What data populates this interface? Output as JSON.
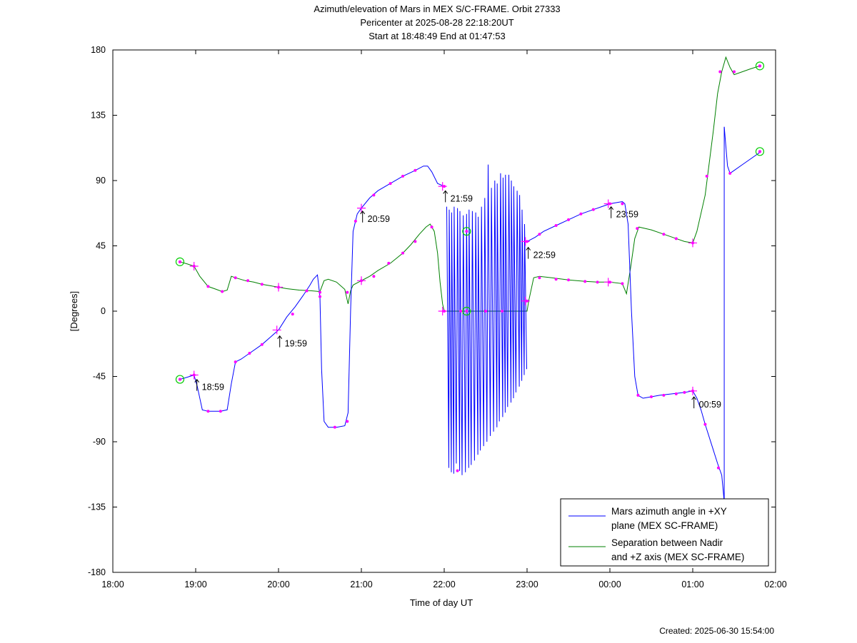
{
  "chart_data": {
    "type": "line",
    "title_lines": [
      "Azimuth/elevation of Mars in MEX S/C-FRAME.  Orbit 27333",
      "Pericenter at 2025-08-28 22:18:20UT",
      "Start at 18:48:49 End at 01:47:53"
    ],
    "xlabel": "Time of day UT",
    "ylabel": "[Degrees]",
    "xlim": [
      18.0,
      26.0
    ],
    "ylim": [
      -180,
      180
    ],
    "x_ticks": [
      {
        "v": 18,
        "label": "18:00"
      },
      {
        "v": 19,
        "label": "19:00"
      },
      {
        "v": 20,
        "label": "20:00"
      },
      {
        "v": 21,
        "label": "21:00"
      },
      {
        "v": 22,
        "label": "22:00"
      },
      {
        "v": 23,
        "label": "23:00"
      },
      {
        "v": 24,
        "label": "00:00"
      },
      {
        "v": 25,
        "label": "01:00"
      },
      {
        "v": 26,
        "label": "02:00"
      }
    ],
    "y_ticks": [
      {
        "v": 180,
        "label": "180"
      },
      {
        "v": 135,
        "label": "135"
      },
      {
        "v": 90,
        "label": "90"
      },
      {
        "v": 45,
        "label": "45"
      },
      {
        "v": 0,
        "label": "0"
      },
      {
        "v": -45,
        "label": "-45"
      },
      {
        "v": -90,
        "label": "-90"
      },
      {
        "v": -135,
        "label": "-135"
      },
      {
        "v": -180,
        "label": "-180"
      }
    ],
    "legend_position": "bottom-right",
    "series": [
      {
        "name": "Mars azimuth angle in +XY plane (MEX SC-FRAME)",
        "legend_lines": [
          "Mars azimuth angle in +XY",
          "plane (MEX SC-FRAME)"
        ],
        "color": "#0000ff",
        "points": [
          [
            18.81,
            -47
          ],
          [
            18.9,
            -45.5
          ],
          [
            18.98,
            -44
          ],
          [
            19.02,
            -52
          ],
          [
            19.08,
            -68
          ],
          [
            19.15,
            -69
          ],
          [
            19.3,
            -69
          ],
          [
            19.38,
            -68
          ],
          [
            19.43,
            -50
          ],
          [
            19.48,
            -35
          ],
          [
            19.55,
            -33
          ],
          [
            19.65,
            -29
          ],
          [
            19.8,
            -23
          ],
          [
            19.9,
            -18
          ],
          [
            20.0,
            -13
          ],
          [
            20.1,
            -4
          ],
          [
            20.2,
            3
          ],
          [
            20.3,
            11
          ],
          [
            20.38,
            18
          ],
          [
            20.42,
            22
          ],
          [
            20.47,
            25
          ],
          [
            20.5,
            10
          ],
          [
            20.52,
            -40
          ],
          [
            20.55,
            -76
          ],
          [
            20.6,
            -80
          ],
          [
            20.7,
            -80
          ],
          [
            20.8,
            -79
          ],
          [
            20.84,
            -70
          ],
          [
            20.87,
            0
          ],
          [
            20.9,
            55
          ],
          [
            20.95,
            67
          ],
          [
            21.0,
            71
          ],
          [
            21.1,
            78
          ],
          [
            21.2,
            83
          ],
          [
            21.35,
            88
          ],
          [
            21.5,
            93
          ],
          [
            21.65,
            97
          ],
          [
            21.75,
            100
          ],
          [
            21.8,
            100
          ],
          [
            21.85,
            96
          ],
          [
            21.92,
            88
          ],
          [
            22.0,
            86
          ]
        ],
        "extra_segments": [
          [
            [
              23.0,
              48
            ],
            [
              23.1,
              51
            ],
            [
              23.2,
              55
            ],
            [
              23.35,
              59
            ],
            [
              23.5,
              63
            ],
            [
              23.65,
              67
            ],
            [
              23.8,
              70
            ],
            [
              23.9,
              72
            ],
            [
              24.0,
              74
            ],
            [
              24.1,
              75
            ],
            [
              24.15,
              75.5
            ],
            [
              24.18,
              74
            ],
            [
              24.22,
              60
            ],
            [
              24.26,
              0
            ],
            [
              24.3,
              -45
            ],
            [
              24.34,
              -58
            ],
            [
              24.4,
              -60
            ],
            [
              24.5,
              -59
            ],
            [
              24.6,
              -58
            ],
            [
              24.75,
              -57
            ],
            [
              24.9,
              -56
            ],
            [
              25.0,
              -55
            ],
            [
              25.05,
              -60
            ],
            [
              25.1,
              -68
            ],
            [
              25.15,
              -78
            ],
            [
              25.25,
              -96
            ],
            [
              25.3,
              -105
            ],
            [
              25.35,
              -113
            ],
            [
              25.37,
              -125
            ],
            [
              25.38,
              -132
            ]
          ],
          [
            [
              25.38,
              127
            ],
            [
              25.42,
              100
            ],
            [
              25.45,
              95
            ],
            [
              25.5,
              97
            ],
            [
              25.6,
              101
            ],
            [
              25.7,
              105
            ],
            [
              25.8,
              109
            ],
            [
              25.81,
              110
            ]
          ]
        ]
      },
      {
        "name": "Separation between Nadir and +Z axis (MEX SC-FRAME)",
        "legend_lines": [
          "Separation between Nadir",
          "and +Z axis (MEX SC-FRAME)"
        ],
        "color": "#008000",
        "points": [
          [
            18.81,
            34
          ],
          [
            18.9,
            32.5
          ],
          [
            18.98,
            31
          ],
          [
            19.05,
            24
          ],
          [
            19.15,
            17
          ],
          [
            19.25,
            15
          ],
          [
            19.32,
            13.5
          ],
          [
            19.38,
            14.5
          ],
          [
            19.43,
            24
          ],
          [
            19.48,
            23
          ],
          [
            19.6,
            21
          ],
          [
            19.7,
            20
          ],
          [
            19.8,
            18.5
          ],
          [
            19.9,
            17.5
          ],
          [
            20.0,
            16.5
          ],
          [
            20.1,
            15.5
          ],
          [
            20.25,
            14.5
          ],
          [
            20.4,
            14
          ],
          [
            20.5,
            13.5
          ],
          [
            20.55,
            21
          ],
          [
            20.6,
            22
          ],
          [
            20.7,
            20
          ],
          [
            20.8,
            15
          ],
          [
            20.84,
            5
          ],
          [
            20.87,
            14
          ],
          [
            20.9,
            18
          ],
          [
            21.0,
            21
          ],
          [
            21.1,
            24
          ],
          [
            21.2,
            28
          ],
          [
            21.35,
            33
          ],
          [
            21.5,
            40
          ],
          [
            21.6,
            46
          ],
          [
            21.7,
            53
          ],
          [
            21.78,
            58
          ],
          [
            21.83,
            60
          ],
          [
            21.88,
            55
          ],
          [
            21.92,
            40
          ],
          [
            21.95,
            20
          ],
          [
            21.98,
            5
          ],
          [
            22.0,
            0
          ],
          [
            23.0,
            0
          ],
          [
            23.02,
            7
          ],
          [
            23.08,
            23
          ],
          [
            23.15,
            24
          ],
          [
            23.3,
            23
          ],
          [
            23.5,
            21.5
          ],
          [
            23.7,
            20.5
          ],
          [
            23.85,
            20
          ],
          [
            24.0,
            20
          ],
          [
            24.15,
            19
          ],
          [
            24.2,
            12
          ],
          [
            24.25,
            30
          ],
          [
            24.3,
            50
          ],
          [
            24.35,
            58
          ],
          [
            24.5,
            56
          ],
          [
            24.65,
            53
          ],
          [
            24.8,
            50
          ],
          [
            24.9,
            48
          ],
          [
            25.0,
            47
          ],
          [
            25.05,
            55
          ],
          [
            25.15,
            80
          ],
          [
            25.25,
            125
          ],
          [
            25.3,
            150
          ],
          [
            25.35,
            165
          ],
          [
            25.4,
            175
          ],
          [
            25.45,
            168
          ],
          [
            25.5,
            163
          ],
          [
            25.6,
            165
          ],
          [
            25.7,
            167
          ],
          [
            25.81,
            169
          ]
        ]
      }
    ],
    "pericenter_segment": {
      "x_start": 22.0,
      "x_end": 23.0,
      "label": "Mars azimuth angle in +XY plane (MEX SC-FRAME)",
      "spikes_x": [
        22.03,
        22.06,
        22.09,
        22.12,
        22.16,
        22.19,
        22.23,
        22.27,
        22.3,
        22.34,
        22.38,
        22.41,
        22.45,
        22.49,
        22.53,
        22.57,
        22.61,
        22.64,
        22.68,
        22.71,
        22.74,
        22.78,
        22.81,
        22.84,
        22.88,
        22.91,
        22.94,
        22.97
      ],
      "spikes_top": [
        72,
        70,
        68,
        72,
        71,
        69,
        66,
        67,
        70,
        69,
        68,
        65,
        72,
        78,
        101,
        85,
        90,
        88,
        95,
        92,
        94,
        94,
        90,
        86,
        83,
        80,
        70,
        60
      ],
      "spikes_bottom": [
        -108,
        -111,
        -112,
        -105,
        -110,
        -113,
        -111,
        -108,
        -106,
        -103,
        -99,
        -96,
        -93,
        -90,
        -86,
        -83,
        -80,
        -76,
        -73,
        -70,
        -66,
        -63,
        -60,
        -56,
        -52,
        -48,
        -44,
        -40
      ]
    },
    "magenta_markers": [
      [
        18.81,
        -47
      ],
      [
        18.98,
        -44
      ],
      [
        19.15,
        -69
      ],
      [
        19.3,
        -69
      ],
      [
        19.48,
        -35
      ],
      [
        19.65,
        -29
      ],
      [
        19.8,
        -23
      ],
      [
        20.17,
        -2
      ],
      [
        20.34,
        14
      ],
      [
        20.5,
        10
      ],
      [
        20.68,
        -80
      ],
      [
        20.83,
        -76
      ],
      [
        20.93,
        62
      ],
      [
        21.15,
        80
      ],
      [
        21.35,
        88
      ],
      [
        21.5,
        93
      ],
      [
        21.65,
        97
      ],
      [
        22.0,
        86
      ],
      [
        22.16,
        -110
      ],
      [
        23.0,
        48
      ],
      [
        23.15,
        53
      ],
      [
        23.35,
        59
      ],
      [
        23.5,
        63
      ],
      [
        23.65,
        67
      ],
      [
        23.8,
        70
      ],
      [
        24.0,
        74
      ],
      [
        24.15,
        74
      ],
      [
        24.34,
        -58
      ],
      [
        24.5,
        -59
      ],
      [
        24.65,
        -58
      ],
      [
        24.8,
        -57
      ],
      [
        24.9,
        -56
      ],
      [
        25.0,
        -55
      ],
      [
        25.15,
        -78
      ],
      [
        25.31,
        -108
      ],
      [
        25.45,
        95
      ],
      [
        25.81,
        110
      ],
      [
        18.81,
        34
      ],
      [
        18.98,
        31
      ],
      [
        19.15,
        17
      ],
      [
        19.32,
        13.5
      ],
      [
        19.48,
        23
      ],
      [
        19.63,
        21
      ],
      [
        19.8,
        18.5
      ],
      [
        20.0,
        16.5
      ],
      [
        20.34,
        14
      ],
      [
        20.5,
        13
      ],
      [
        20.83,
        13
      ],
      [
        21.0,
        21
      ],
      [
        21.15,
        24
      ],
      [
        21.33,
        33
      ],
      [
        21.5,
        40
      ],
      [
        21.65,
        48
      ],
      [
        21.85,
        58
      ],
      [
        22.0,
        0
      ],
      [
        22.2,
        0
      ],
      [
        22.5,
        0
      ],
      [
        22.7,
        0
      ],
      [
        23.0,
        7
      ],
      [
        23.15,
        23
      ],
      [
        23.35,
        22
      ],
      [
        23.5,
        21.5
      ],
      [
        23.7,
        20.5
      ],
      [
        23.85,
        20
      ],
      [
        24.0,
        20
      ],
      [
        24.15,
        19
      ],
      [
        24.33,
        57
      ],
      [
        24.65,
        53
      ],
      [
        24.8,
        50
      ],
      [
        25.0,
        47
      ],
      [
        25.17,
        93
      ],
      [
        25.33,
        165
      ],
      [
        25.5,
        165
      ],
      [
        25.81,
        169
      ]
    ],
    "plus_markers": [
      [
        18.98,
        31
      ],
      [
        18.98,
        -44
      ],
      [
        19.98,
        -13
      ],
      [
        20.0,
        16.5
      ],
      [
        21.0,
        71
      ],
      [
        21.0,
        21
      ],
      [
        21.98,
        86
      ],
      [
        21.98,
        0
      ],
      [
        22.98,
        48
      ],
      [
        22.98,
        7
      ],
      [
        23.98,
        74
      ],
      [
        23.98,
        20
      ],
      [
        25.0,
        -55
      ],
      [
        25.0,
        47
      ]
    ],
    "circle_markers": [
      [
        18.81,
        34
      ],
      [
        18.81,
        -47
      ],
      [
        22.27,
        55
      ],
      [
        22.27,
        0
      ],
      [
        25.81,
        169
      ],
      [
        25.81,
        110
      ]
    ],
    "annotations": [
      {
        "x": 18.98,
        "y": -50,
        "label": "18:59"
      },
      {
        "x": 19.98,
        "y": -20,
        "label": "19:59"
      },
      {
        "x": 20.98,
        "y": 66,
        "label": "20:59"
      },
      {
        "x": 21.98,
        "y": 80,
        "label": "21:59"
      },
      {
        "x": 22.98,
        "y": 41,
        "label": "22:59"
      },
      {
        "x": 23.98,
        "y": 69,
        "label": "23:59"
      },
      {
        "x": 24.98,
        "y": -62,
        "label": "00:59"
      }
    ],
    "footer": "Created: 2025-06-30 15:54:00"
  }
}
